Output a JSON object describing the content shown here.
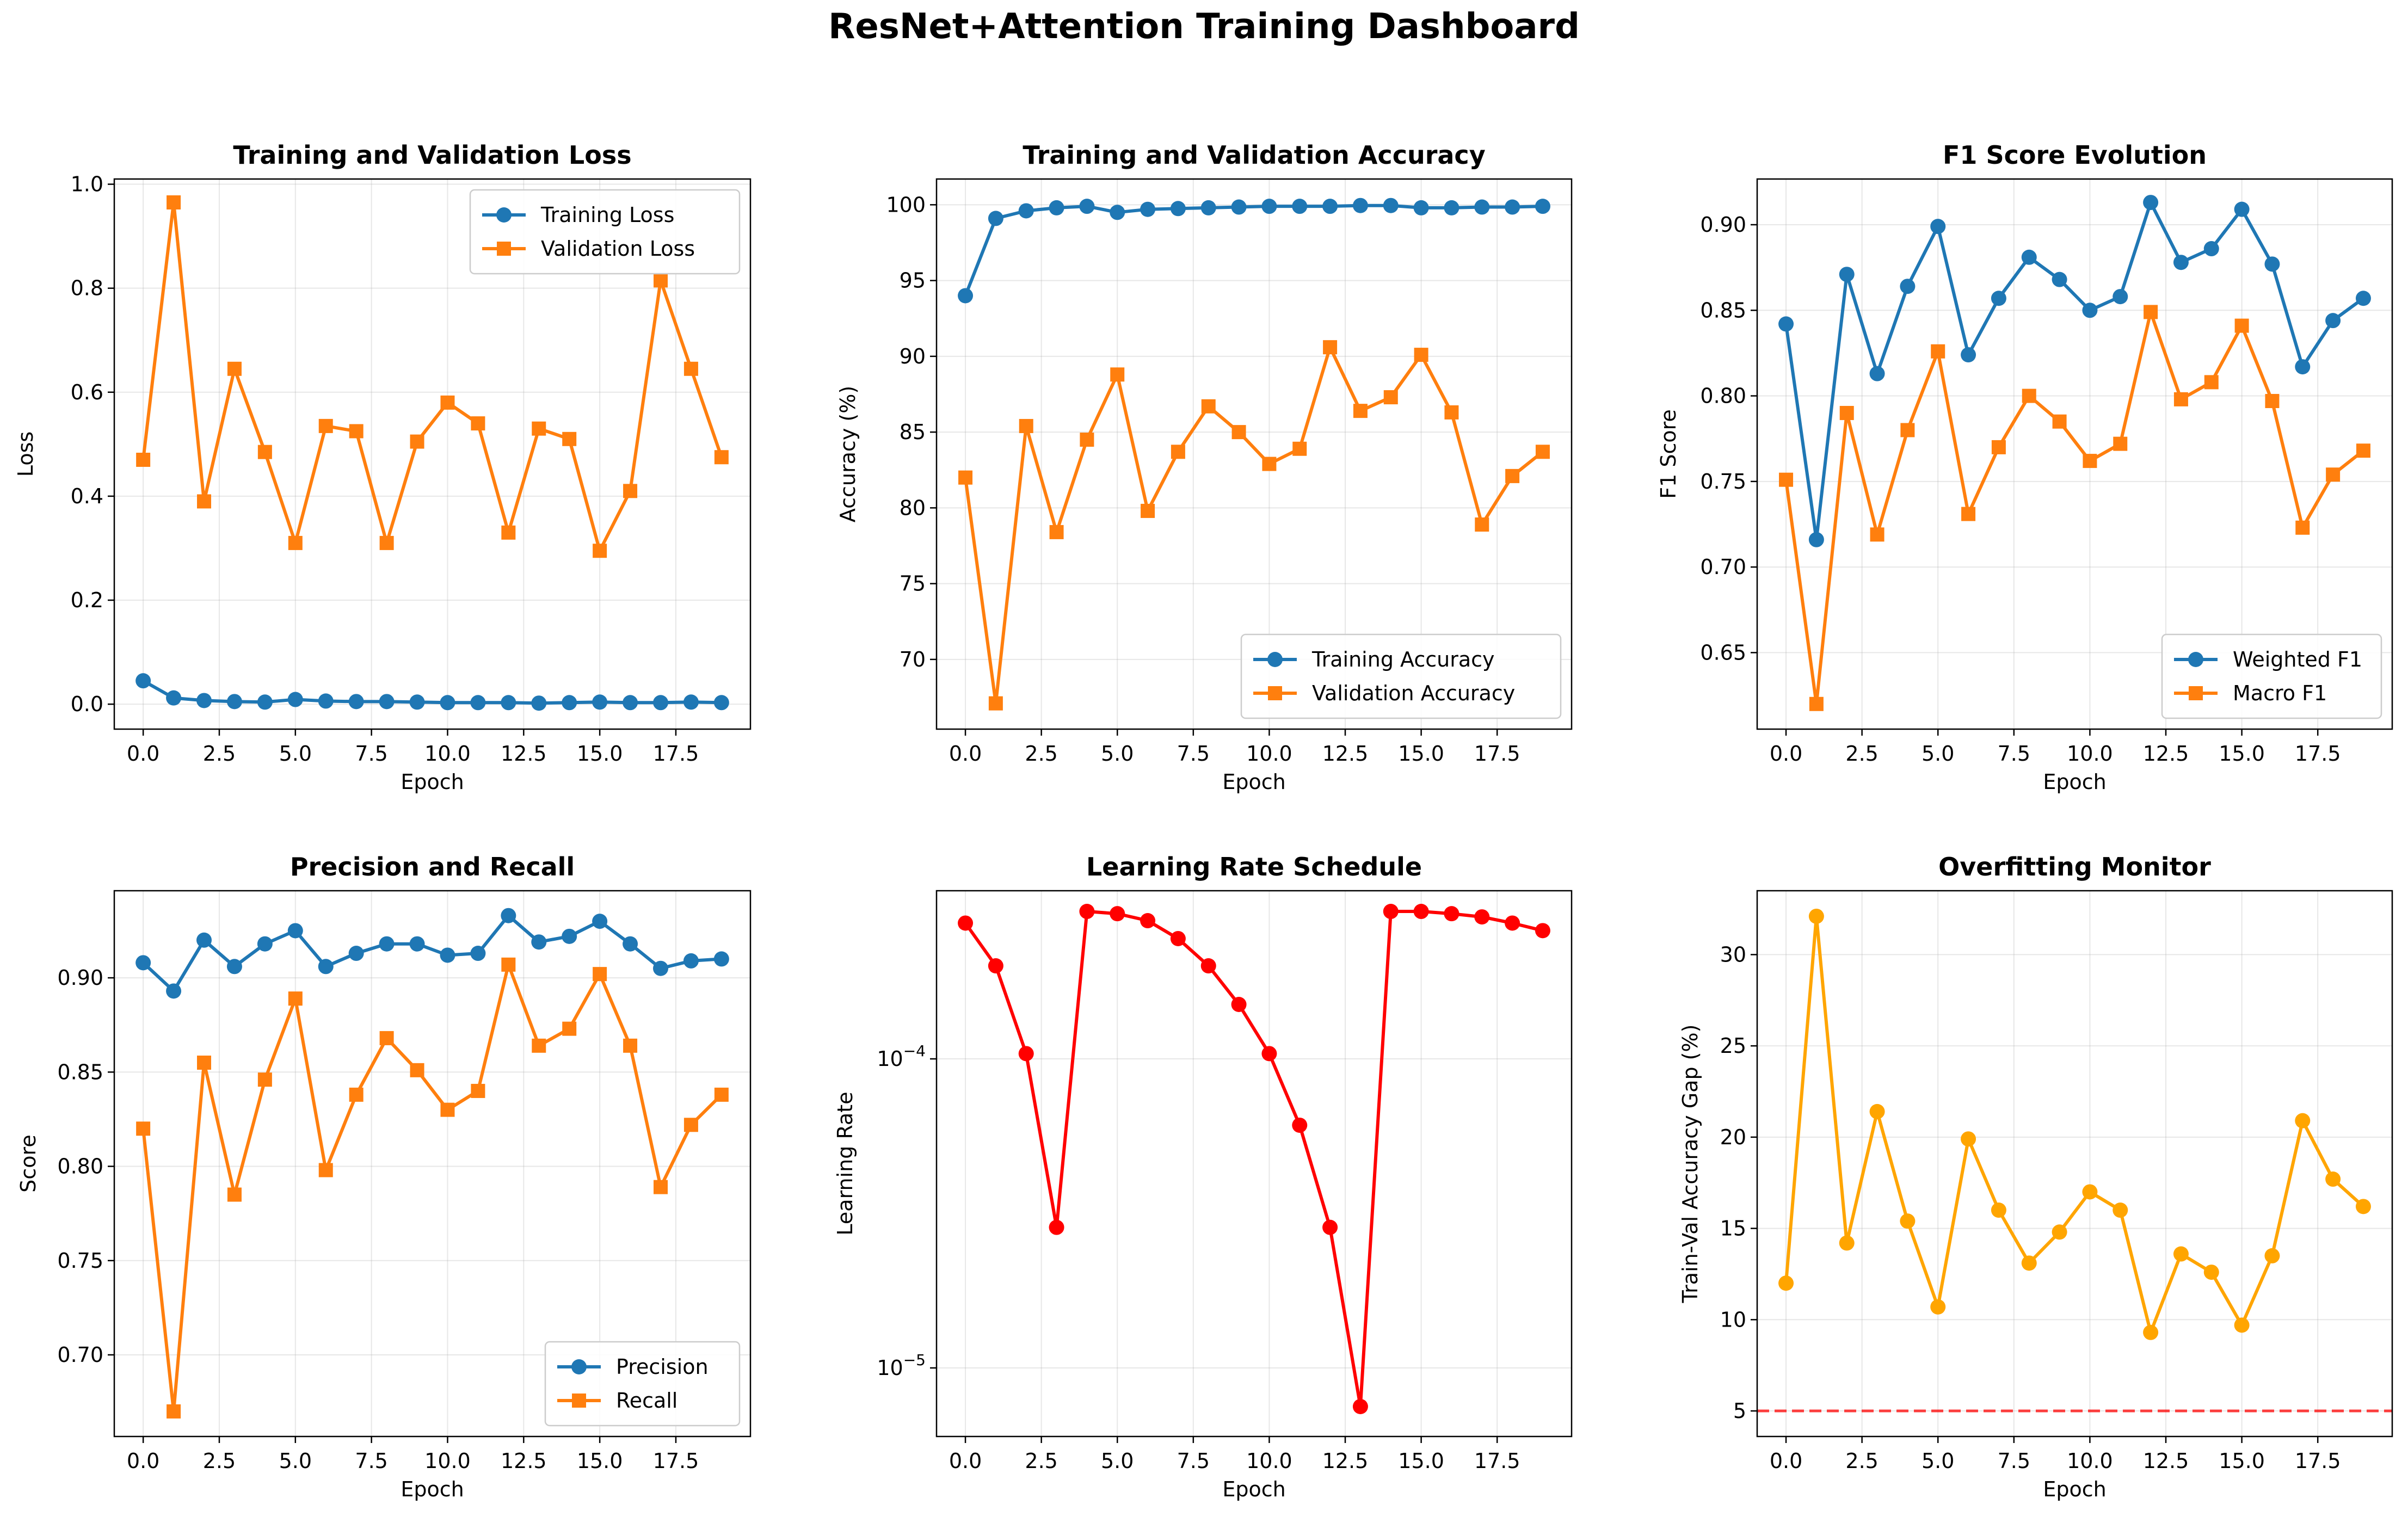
{
  "title": "ResNet+Attention Training Dashboard",
  "colors": {
    "blue": "#1f77b4",
    "orange": "#ff7f0e",
    "red": "#ff0000",
    "amber": "#ffa500",
    "threshold": "#ff0000"
  },
  "chart_data": [
    {
      "type": "line",
      "title": "Training and Validation Loss",
      "xlabel": "Epoch",
      "ylabel": "Loss",
      "grid": true,
      "legend": "top-right",
      "xlim": [
        -0.95,
        19.95
      ],
      "ylim": [
        -0.048,
        1.01
      ],
      "xticks": [
        0,
        2.5,
        5,
        7.5,
        10,
        12.5,
        15,
        17.5
      ],
      "xtick_labels": [
        "0.0",
        "2.5",
        "5.0",
        "7.5",
        "10.0",
        "12.5",
        "15.0",
        "17.5"
      ],
      "yticks": [
        0,
        0.2,
        0.4,
        0.6,
        0.8,
        1.0
      ],
      "ytick_labels": [
        "0.0",
        "0.2",
        "0.4",
        "0.6",
        "0.8",
        "1.0"
      ],
      "x": [
        0,
        1,
        2,
        3,
        4,
        5,
        6,
        7,
        8,
        9,
        10,
        11,
        12,
        13,
        14,
        15,
        16,
        17,
        18,
        19
      ],
      "series": [
        {
          "name": "Training Loss",
          "color": "#1f77b4",
          "marker": "circle",
          "values": [
            0.045,
            0.012,
            0.007,
            0.005,
            0.004,
            0.009,
            0.006,
            0.005,
            0.005,
            0.004,
            0.003,
            0.003,
            0.003,
            0.002,
            0.003,
            0.004,
            0.003,
            0.003,
            0.004,
            0.003
          ]
        },
        {
          "name": "Validation Loss",
          "color": "#ff7f0e",
          "marker": "square",
          "values": [
            0.47,
            0.965,
            0.39,
            0.645,
            0.485,
            0.31,
            0.535,
            0.525,
            0.31,
            0.505,
            0.58,
            0.54,
            0.33,
            0.53,
            0.51,
            0.295,
            0.41,
            0.815,
            0.645,
            0.475
          ]
        }
      ]
    },
    {
      "type": "line",
      "title": "Training and Validation Accuracy",
      "xlabel": "Epoch",
      "ylabel": "Accuracy (%)",
      "grid": true,
      "legend": "bottom-right",
      "xlim": [
        -0.95,
        19.95
      ],
      "ylim": [
        65.4,
        101.7
      ],
      "xticks": [
        0,
        2.5,
        5,
        7.5,
        10,
        12.5,
        15,
        17.5
      ],
      "xtick_labels": [
        "0.0",
        "2.5",
        "5.0",
        "7.5",
        "10.0",
        "12.5",
        "15.0",
        "17.5"
      ],
      "yticks": [
        70,
        75,
        80,
        85,
        90,
        95,
        100
      ],
      "ytick_labels": [
        "70",
        "75",
        "80",
        "85",
        "90",
        "95",
        "100"
      ],
      "x": [
        0,
        1,
        2,
        3,
        4,
        5,
        6,
        7,
        8,
        9,
        10,
        11,
        12,
        13,
        14,
        15,
        16,
        17,
        18,
        19
      ],
      "series": [
        {
          "name": "Training Accuracy",
          "color": "#1f77b4",
          "marker": "circle",
          "values": [
            94.0,
            99.1,
            99.6,
            99.8,
            99.9,
            99.5,
            99.7,
            99.75,
            99.8,
            99.85,
            99.9,
            99.9,
            99.9,
            99.95,
            99.95,
            99.8,
            99.8,
            99.85,
            99.85,
            99.9
          ]
        },
        {
          "name": "Validation Accuracy",
          "color": "#ff7f0e",
          "marker": "square",
          "values": [
            82.0,
            67.1,
            85.4,
            78.4,
            84.5,
            88.8,
            79.8,
            83.7,
            86.7,
            85.0,
            82.9,
            83.9,
            90.6,
            86.4,
            87.3,
            90.1,
            86.3,
            78.9,
            82.1,
            83.7
          ]
        }
      ]
    },
    {
      "type": "line",
      "title": "F1 Score Evolution",
      "xlabel": "Epoch",
      "ylabel": "F1 Score",
      "grid": true,
      "legend": "bottom-right",
      "xlim": [
        -0.95,
        19.95
      ],
      "ylim": [
        0.6053,
        0.9267
      ],
      "xticks": [
        0,
        2.5,
        5,
        7.5,
        10,
        12.5,
        15,
        17.5
      ],
      "xtick_labels": [
        "0.0",
        "2.5",
        "5.0",
        "7.5",
        "10.0",
        "12.5",
        "15.0",
        "17.5"
      ],
      "yticks": [
        0.65,
        0.7,
        0.75,
        0.8,
        0.85,
        0.9
      ],
      "ytick_labels": [
        "0.65",
        "0.70",
        "0.75",
        "0.80",
        "0.85",
        "0.90"
      ],
      "x": [
        0,
        1,
        2,
        3,
        4,
        5,
        6,
        7,
        8,
        9,
        10,
        11,
        12,
        13,
        14,
        15,
        16,
        17,
        18,
        19
      ],
      "series": [
        {
          "name": "Weighted F1",
          "color": "#1f77b4",
          "marker": "circle",
          "values": [
            0.842,
            0.716,
            0.871,
            0.813,
            0.864,
            0.899,
            0.824,
            0.857,
            0.881,
            0.868,
            0.85,
            0.858,
            0.913,
            0.878,
            0.886,
            0.909,
            0.877,
            0.817,
            0.844,
            0.857
          ]
        },
        {
          "name": "Macro F1",
          "color": "#ff7f0e",
          "marker": "square",
          "values": [
            0.751,
            0.62,
            0.79,
            0.719,
            0.78,
            0.826,
            0.731,
            0.77,
            0.8,
            0.785,
            0.762,
            0.772,
            0.849,
            0.798,
            0.808,
            0.841,
            0.797,
            0.723,
            0.754,
            0.768
          ]
        }
      ]
    },
    {
      "type": "line",
      "title": "Precision and Recall",
      "xlabel": "Epoch",
      "ylabel": "Score",
      "grid": true,
      "legend": "bottom-right",
      "xlim": [
        -0.95,
        19.95
      ],
      "ylim": [
        0.6567,
        0.9462
      ],
      "xticks": [
        0,
        2.5,
        5,
        7.5,
        10,
        12.5,
        15,
        17.5
      ],
      "xtick_labels": [
        "0.0",
        "2.5",
        "5.0",
        "7.5",
        "10.0",
        "12.5",
        "15.0",
        "17.5"
      ],
      "yticks": [
        0.7,
        0.75,
        0.8,
        0.85,
        0.9
      ],
      "ytick_labels": [
        "0.70",
        "0.75",
        "0.80",
        "0.85",
        "0.90"
      ],
      "x": [
        0,
        1,
        2,
        3,
        4,
        5,
        6,
        7,
        8,
        9,
        10,
        11,
        12,
        13,
        14,
        15,
        16,
        17,
        18,
        19
      ],
      "series": [
        {
          "name": "Precision",
          "color": "#1f77b4",
          "marker": "circle",
          "values": [
            0.908,
            0.893,
            0.92,
            0.906,
            0.918,
            0.925,
            0.906,
            0.913,
            0.918,
            0.918,
            0.912,
            0.913,
            0.933,
            0.919,
            0.922,
            0.93,
            0.918,
            0.905,
            0.909,
            0.91
          ]
        },
        {
          "name": "Recall",
          "color": "#ff7f0e",
          "marker": "square",
          "values": [
            0.82,
            0.67,
            0.855,
            0.785,
            0.846,
            0.889,
            0.798,
            0.838,
            0.868,
            0.851,
            0.83,
            0.84,
            0.907,
            0.864,
            0.873,
            0.902,
            0.864,
            0.789,
            0.822,
            0.838
          ]
        }
      ]
    },
    {
      "type": "line",
      "title": "Learning Rate Schedule",
      "xlabel": "Epoch",
      "ylabel": "Learning Rate",
      "yscale": "log",
      "grid": true,
      "legend": "none",
      "xlim": [
        -0.95,
        19.95
      ],
      "ylim": [
        6e-06,
        0.00035
      ],
      "xticks": [
        0,
        2.5,
        5,
        7.5,
        10,
        12.5,
        15,
        17.5
      ],
      "xtick_labels": [
        "0.0",
        "2.5",
        "5.0",
        "7.5",
        "10.0",
        "12.5",
        "15.0",
        "17.5"
      ],
      "yticks": [
        1e-05,
        0.0001
      ],
      "ytick_labels": [
        {
          "base": "10",
          "exp": "−5"
        },
        {
          "base": "10",
          "exp": "−4"
        }
      ],
      "x": [
        0,
        1,
        2,
        3,
        4,
        5,
        6,
        7,
        8,
        9,
        10,
        11,
        12,
        13,
        14,
        15,
        16,
        17,
        18,
        19
      ],
      "series": [
        {
          "name": "",
          "color": "#ff0000",
          "marker": "circle",
          "values": [
            0.000275,
            0.0002,
            0.000104,
            2.85e-05,
            0.0003,
            0.000295,
            0.00028,
            0.000245,
            0.0002,
            0.00015,
            0.000104,
            6.1e-05,
            2.85e-05,
            7.5e-06,
            0.0003,
            0.0003,
            0.000295,
            0.000288,
            0.000275,
            0.00026
          ]
        }
      ]
    },
    {
      "type": "line",
      "title": "Overfitting Monitor",
      "xlabel": "Epoch",
      "ylabel": "Train-Val Accuracy Gap (%)",
      "grid": true,
      "legend": "none",
      "xlim": [
        -0.95,
        19.95
      ],
      "ylim": [
        3.6,
        33.5
      ],
      "xticks": [
        0,
        2.5,
        5,
        7.5,
        10,
        12.5,
        15,
        17.5
      ],
      "xtick_labels": [
        "0.0",
        "2.5",
        "5.0",
        "7.5",
        "10.0",
        "12.5",
        "15.0",
        "17.5"
      ],
      "yticks": [
        5,
        10,
        15,
        20,
        25,
        30
      ],
      "ytick_labels": [
        "5",
        "10",
        "15",
        "20",
        "25",
        "30"
      ],
      "x": [
        0,
        1,
        2,
        3,
        4,
        5,
        6,
        7,
        8,
        9,
        10,
        11,
        12,
        13,
        14,
        15,
        16,
        17,
        18,
        19
      ],
      "reference_line": {
        "y": 5,
        "style": "dashed",
        "color": "#ff0000"
      },
      "series": [
        {
          "name": "",
          "color": "#ffa500",
          "marker": "circle",
          "values": [
            12.0,
            32.1,
            14.2,
            21.4,
            15.4,
            10.7,
            19.9,
            16.0,
            13.1,
            14.8,
            17.0,
            16.0,
            9.3,
            13.6,
            12.6,
            9.7,
            13.5,
            20.9,
            17.7,
            16.2
          ]
        }
      ]
    }
  ]
}
